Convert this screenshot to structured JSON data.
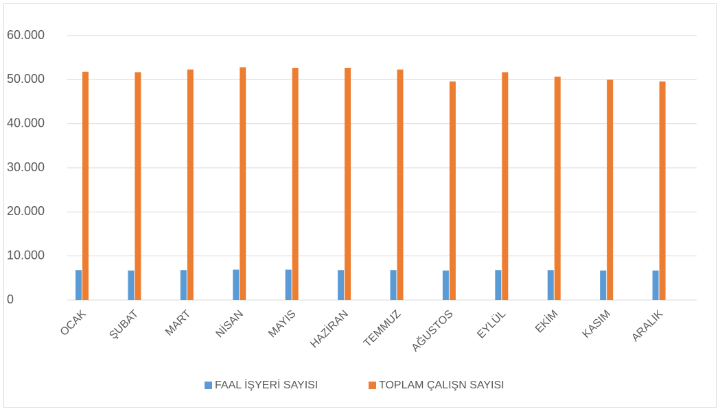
{
  "chart_data": {
    "type": "bar",
    "categories": [
      "OCAK",
      "ŞUBAT",
      "MART",
      "NİSAN",
      "MAYIS",
      "HAZİRAN",
      "TEMMUZ",
      "AĞUSTOS",
      "EYLÜL",
      "EKİM",
      "KASIM",
      "ARALIK"
    ],
    "series": [
      {
        "name": "FAAL İŞYERİ SAYISI",
        "color": "#5b9bd5",
        "values": [
          6800,
          6700,
          6800,
          6900,
          6900,
          6800,
          6800,
          6700,
          6800,
          6800,
          6700,
          6700
        ]
      },
      {
        "name": "TOPLAM ÇALIŞN SAYISI",
        "color": "#ed7d31",
        "values": [
          51800,
          51700,
          52300,
          52800,
          52700,
          52700,
          52300,
          49600,
          51700,
          50700,
          50000,
          49600
        ]
      }
    ],
    "ylim": [
      0,
      60000
    ],
    "yticks": [
      0,
      {
        "value": 10000,
        "label": "10.000"
      },
      {
        "value": 20000,
        "label": "20.000"
      },
      {
        "value": 30000,
        "label": "30.000"
      },
      {
        "value": 40000,
        "label": "40.000"
      },
      {
        "value": 50000,
        "label": "50.000"
      },
      {
        "value": 60000,
        "label": "60.000"
      }
    ],
    "grid": true,
    "legend": "bottom"
  }
}
